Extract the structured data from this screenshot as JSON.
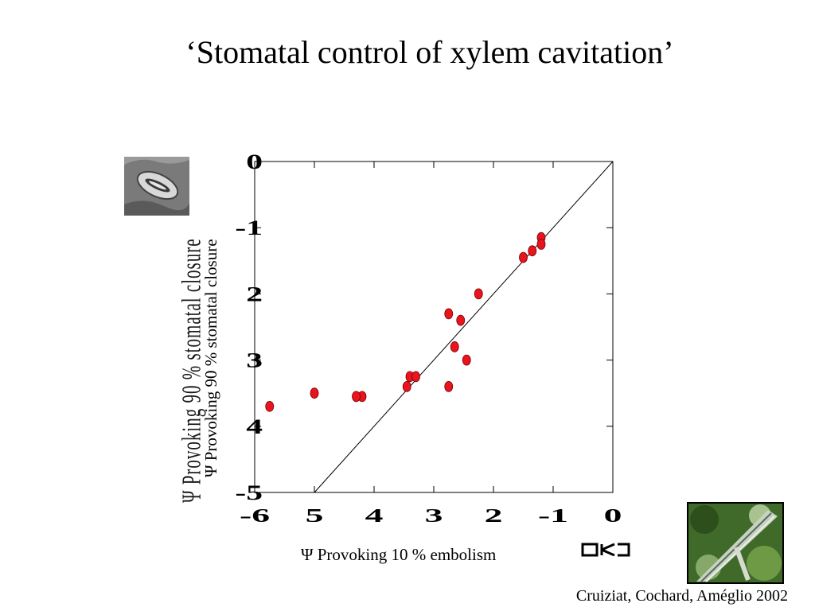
{
  "slide": {
    "title": "‘Stomatal control of xylem cavitation’",
    "citation": "Cruiziat, Cochard, Améglio 2002"
  },
  "images": {
    "stomata": "stomata-micrograph-icon",
    "xylem": "xylem-vessel-micrograph-icon"
  },
  "chart_data": {
    "type": "scatter",
    "xlabel": "Ψ Provoking 10 % embolism",
    "ylabel": "Ψ Provoking 90 % stomatal closure",
    "xlim": [
      -6,
      0
    ],
    "ylim": [
      -5,
      0
    ],
    "x_ticks": [
      -6,
      -5,
      -4,
      -3,
      -2,
      -1,
      0
    ],
    "x_tick_labels": [
      "-6",
      "5",
      "4",
      "3",
      "2",
      "-1",
      "0"
    ],
    "y_ticks": [
      0,
      -1,
      -2,
      -3,
      -4,
      -5
    ],
    "y_tick_labels": [
      "0",
      "-1",
      "2",
      "3",
      "4",
      "-5"
    ],
    "reference_line": "1:1",
    "grid": false,
    "point_color": "#e8141e",
    "points": [
      {
        "x": -1.2,
        "y": -1.15
      },
      {
        "x": -1.2,
        "y": -1.25
      },
      {
        "x": -1.35,
        "y": -1.35
      },
      {
        "x": -1.5,
        "y": -1.45
      },
      {
        "x": -2.25,
        "y": -2.0
      },
      {
        "x": -2.75,
        "y": -2.3
      },
      {
        "x": -2.55,
        "y": -2.4
      },
      {
        "x": -2.65,
        "y": -2.8
      },
      {
        "x": -2.45,
        "y": -3.0
      },
      {
        "x": -3.4,
        "y": -3.25
      },
      {
        "x": -3.3,
        "y": -3.25
      },
      {
        "x": -3.45,
        "y": -3.4
      },
      {
        "x": -2.75,
        "y": -3.4
      },
      {
        "x": -5.0,
        "y": -3.5
      },
      {
        "x": -4.2,
        "y": -3.55
      },
      {
        "x": -4.3,
        "y": -3.55
      },
      {
        "x": -5.75,
        "y": -3.7
      }
    ]
  }
}
